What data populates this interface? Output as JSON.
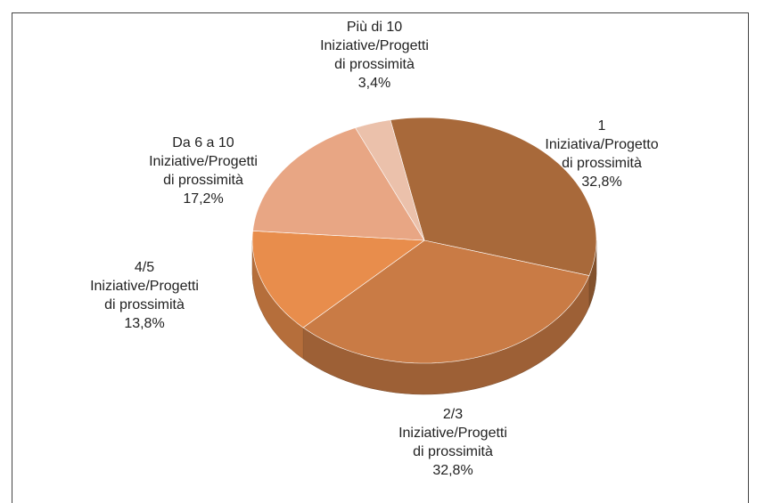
{
  "chart_data": {
    "type": "pie",
    "categories": [
      "1\nIniziativa/Progetto\ndi prossimità",
      "2/3\nIniziative/Progetti\ndi prossimità",
      "4/5\nIniziative/Progetti\ndi prossimità",
      "Da 6 a 10\nIniziative/Progetti\ndi prossimità",
      "Più di 10\nIniziative/Progetti\ndi prossimità"
    ],
    "values": [
      32.8,
      32.8,
      13.8,
      17.2,
      3.4
    ],
    "value_labels": [
      "32,8%",
      "32,8%",
      "13,8%",
      "17,2%",
      "3,4%"
    ],
    "colors": [
      "#a8693a",
      "#c97b45",
      "#e88d4c",
      "#e8a684",
      "#ebc1ab"
    ]
  }
}
